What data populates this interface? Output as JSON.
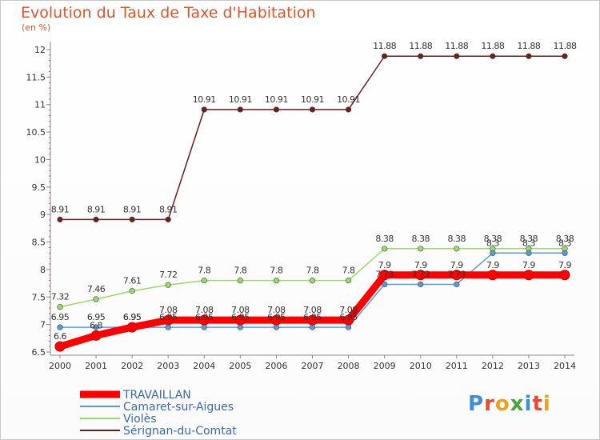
{
  "header": {
    "title": "Evolution du Taux de Taxe d'Habitation",
    "subtitle": "(en %)"
  },
  "logo": {
    "text": "Proxiti"
  },
  "chart_data": {
    "type": "line",
    "title": "Evolution du Taux de Taxe d'Habitation",
    "subtitle": "(en %)",
    "xlabel": "",
    "ylabel": "",
    "x": [
      "2000",
      "2001",
      "2002",
      "2003",
      "2004",
      "2005",
      "2006",
      "2007",
      "2008",
      "2009",
      "2010",
      "2011",
      "2012",
      "2013",
      "2014"
    ],
    "ylim": [
      6.5,
      12
    ],
    "yticks": [
      "6.5",
      "7",
      "7.5",
      "8",
      "8.5",
      "9",
      "9.5",
      "10",
      "10.5",
      "11",
      "11.5",
      "12"
    ],
    "grid": false,
    "legend": "bottom-left",
    "series": [
      {
        "name": "TRAVAILLAN",
        "color": "#ff0000",
        "values": [
          6.6,
          6.8,
          6.95,
          7.08,
          7.08,
          7.08,
          7.08,
          7.08,
          7.08,
          7.9,
          7.9,
          7.9,
          7.9,
          7.9,
          7.9
        ],
        "labels": [
          "6.6",
          "6.8",
          "6.95",
          "7.08",
          "7.08",
          "7.08",
          "7.08",
          "7.08",
          "7.08",
          "7.9",
          "7.9",
          "7.9",
          "7.9",
          "7.9",
          "7.9"
        ]
      },
      {
        "name": "Camaret-sur-Aigues",
        "color": "#5a9bd5",
        "values": [
          6.95,
          6.95,
          6.95,
          6.95,
          6.95,
          6.95,
          6.95,
          6.95,
          6.95,
          7.73,
          7.73,
          7.73,
          8.3,
          8.3,
          8.3
        ],
        "labels": [
          "6.95",
          "6.95",
          "6.95",
          "6.95",
          "6.95",
          "6.95",
          "6.95",
          "6.95",
          "6.95",
          "7.73",
          "7.73",
          "7.73",
          "8.3",
          "8.3",
          "8.3"
        ]
      },
      {
        "name": "Violès",
        "color": "#99dd66",
        "values": [
          7.32,
          7.46,
          7.61,
          7.72,
          7.8,
          7.8,
          7.8,
          7.8,
          7.8,
          8.38,
          8.38,
          8.38,
          8.38,
          8.38,
          8.38
        ],
        "labels": [
          "7.32",
          "7.46",
          "7.61",
          "7.72",
          "7.8",
          "7.8",
          "7.8",
          "7.8",
          "7.8",
          "8.38",
          "8.38",
          "8.38",
          "8.38",
          "8.38",
          "8.38"
        ]
      },
      {
        "name": "Sérignan-du-Comtat",
        "color": "#6b1f1f",
        "values": [
          8.91,
          8.91,
          8.91,
          8.91,
          10.91,
          10.91,
          10.91,
          10.91,
          10.91,
          11.88,
          11.88,
          11.88,
          11.88,
          11.88,
          11.88
        ],
        "labels": [
          "8.91",
          "8.91",
          "8.91",
          "8.91",
          "10.91",
          "10.91",
          "10.91",
          "10.91",
          "10.91",
          "11.88",
          "11.88",
          "11.88",
          "11.88",
          "11.88",
          "11.88"
        ]
      }
    ]
  }
}
